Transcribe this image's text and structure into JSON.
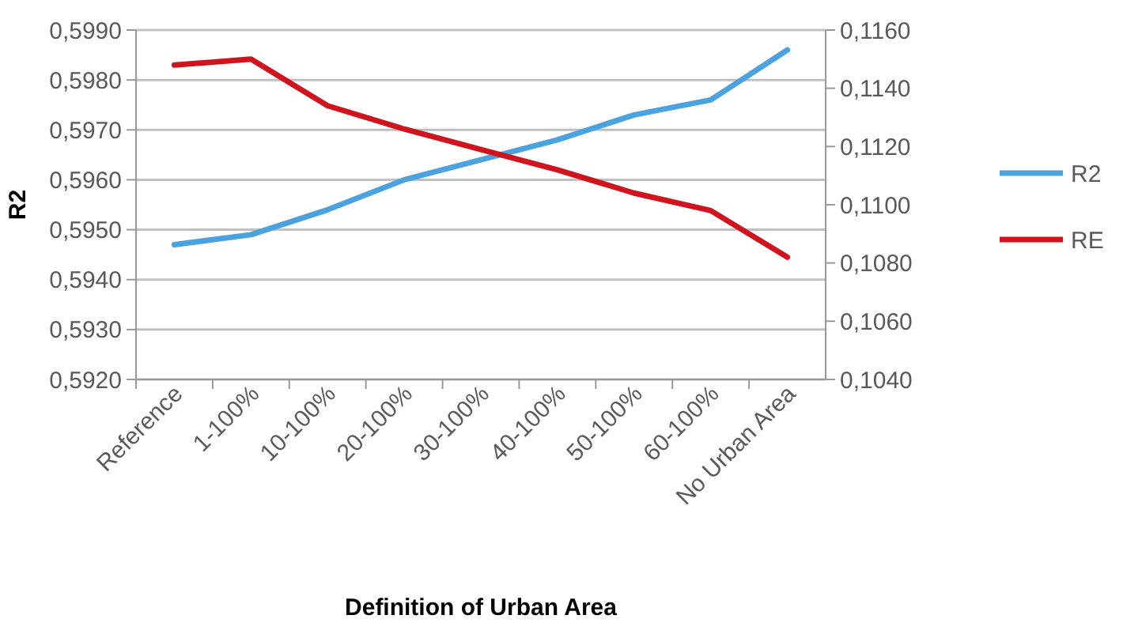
{
  "chart_data": {
    "type": "line",
    "xlabel": "Definition of Urban Area",
    "ylabel": "R2",
    "categories": [
      "Reference",
      "1-100%",
      "10-100%",
      "20-100%",
      "30-100%",
      "40-100%",
      "50-100%",
      "60-100%",
      "No Urban Area"
    ],
    "series": [
      {
        "name": "R2",
        "color": "#4aa3df",
        "values": [
          0.5947,
          0.5949,
          0.5954,
          0.596,
          0.5964,
          0.5968,
          0.5973,
          0.5976,
          0.5986
        ]
      },
      {
        "name": "RE",
        "color": "#d0141e",
        "axis": "y2",
        "values": [
          0.1148,
          0.115,
          0.1134,
          0.1126,
          0.1119,
          0.1112,
          0.1104,
          0.1098,
          0.1082
        ]
      }
    ],
    "ylim": [
      0.592,
      0.599
    ],
    "yticks": [
      {
        "value": 0.592,
        "label": "0,5920"
      },
      {
        "value": 0.593,
        "label": "0,5930"
      },
      {
        "value": 0.594,
        "label": "0,5940"
      },
      {
        "value": 0.595,
        "label": "0,5950"
      },
      {
        "value": 0.596,
        "label": "0,5960"
      },
      {
        "value": 0.597,
        "label": "0,5970"
      },
      {
        "value": 0.598,
        "label": "0,5980"
      },
      {
        "value": 0.599,
        "label": "0,5990"
      }
    ],
    "y2lim": [
      0.104,
      0.116
    ],
    "y2ticks": [
      {
        "value": 0.104,
        "label": "0,1040"
      },
      {
        "value": 0.106,
        "label": "0,1060"
      },
      {
        "value": 0.108,
        "label": "0,1080"
      },
      {
        "value": 0.11,
        "label": "0,1100"
      },
      {
        "value": 0.112,
        "label": "0,1120"
      },
      {
        "value": 0.114,
        "label": "0,1140"
      },
      {
        "value": 0.116,
        "label": "0,1160"
      }
    ],
    "grid": "y",
    "legend": "right",
    "marker": "none",
    "line_style": "solid"
  }
}
